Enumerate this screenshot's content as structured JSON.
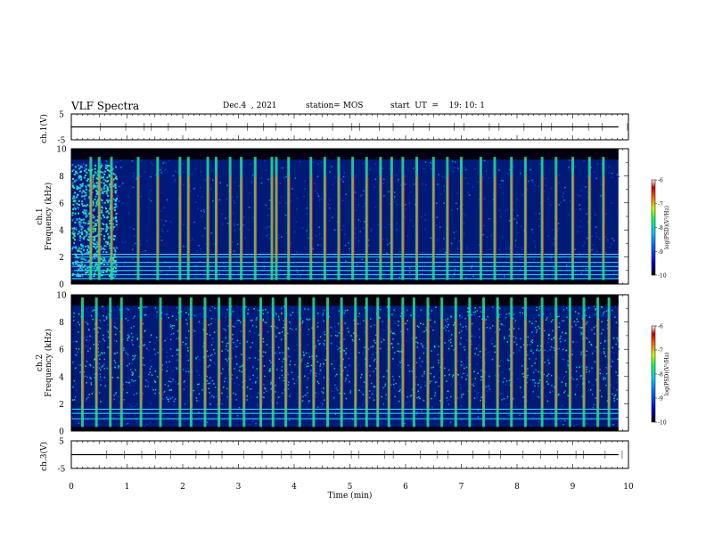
{
  "header": {
    "title": "VLF Spectra",
    "date": "Dec.4  , 2021",
    "station": "station= MOS",
    "start_ut": "start  UT  =    19: 10: 1"
  },
  "colors": {
    "background_spectrum": "#001a7a",
    "colormap": [
      "#000000",
      "#0000c8",
      "#0064ff",
      "#00c8ff",
      "#00ff64",
      "#c8ff00",
      "#ff6400",
      "#c80000",
      "#ffffff"
    ]
  },
  "chart_data": [
    {
      "type": "line",
      "panel": "ch1-waveform",
      "ylabel": "ch.1(V)",
      "ylim": [
        -5,
        5
      ],
      "yticks": [
        "5",
        "-5"
      ],
      "xlim": [
        0,
        10
      ],
      "series": [
        {
          "values_description_free": true,
          "x": [
            0,
            9.82
          ],
          "y": [
            0,
            0
          ]
        }
      ]
    },
    {
      "type": "heatmap",
      "panel": "ch1-spectrogram",
      "ylabel": "ch.1 Frequency (kHz)",
      "ylim": [
        0,
        10
      ],
      "yticks": [
        "0",
        "2",
        "4",
        "6",
        "8",
        "10"
      ],
      "xlim": [
        0,
        10
      ],
      "data_end_min": 9.82,
      "colorbar": {
        "label": "log(PSD)(V²/Hz)",
        "range": [
          -10,
          -6
        ],
        "ticks": [
          "-6",
          "-7",
          "-8",
          "-9",
          "-10"
        ]
      },
      "bursts_min": [
        0.35,
        0.5,
        0.72,
        1.2,
        1.55,
        1.95,
        2.1,
        2.45,
        2.6,
        2.85,
        3.05,
        3.3,
        3.6,
        3.68,
        3.9,
        4.3,
        4.55,
        4.8,
        5.05,
        5.3,
        5.55,
        5.75,
        5.95,
        6.2,
        6.5,
        6.75,
        7.0,
        7.35,
        7.6,
        7.9,
        8.15,
        8.45,
        8.7,
        9.0,
        9.3,
        9.55
      ],
      "lines_khz": [
        0.4,
        0.7,
        1.0,
        1.3,
        1.6,
        2.0,
        2.2
      ]
    },
    {
      "type": "heatmap",
      "panel": "ch2-spectrogram",
      "ylabel": "ch.2 Frequency (kHz)",
      "ylim": [
        0,
        10
      ],
      "yticks": [
        "0",
        "2",
        "4",
        "6",
        "8",
        "10"
      ],
      "xlim": [
        0,
        10
      ],
      "data_end_min": 9.82,
      "colorbar": {
        "label": "log(PSD)(V²/Hz)",
        "range": [
          -10,
          -6
        ],
        "ticks": [
          "-6",
          "-7",
          "-8",
          "-9",
          "-10"
        ]
      },
      "bursts_min": [
        0.2,
        0.45,
        0.7,
        0.9,
        1.25,
        1.6,
        1.95,
        2.15,
        2.4,
        2.65,
        2.85,
        3.1,
        3.4,
        3.62,
        3.85,
        4.1,
        4.35,
        4.6,
        4.85,
        5.1,
        5.3,
        5.5,
        5.7,
        5.95,
        6.15,
        6.4,
        6.65,
        6.9,
        7.15,
        7.4,
        7.65,
        7.9,
        8.15,
        8.45,
        8.7,
        8.95,
        9.2,
        9.45,
        9.65
      ],
      "lines_khz": [
        0.9,
        1.3,
        1.6
      ]
    },
    {
      "type": "line",
      "panel": "ch3-waveform",
      "ylabel": "ch.3(V)",
      "ylim": [
        -5,
        5
      ],
      "yticks": [
        "5",
        "-5"
      ],
      "xlim": [
        0,
        10
      ],
      "series": [
        {
          "x": [
            0,
            9.82
          ],
          "y": [
            0,
            0
          ]
        }
      ]
    }
  ],
  "xaxis": {
    "label": "Time  (min)",
    "ticks": [
      "0",
      "1",
      "2",
      "3",
      "4",
      "5",
      "6",
      "7",
      "8",
      "9",
      "10"
    ]
  }
}
